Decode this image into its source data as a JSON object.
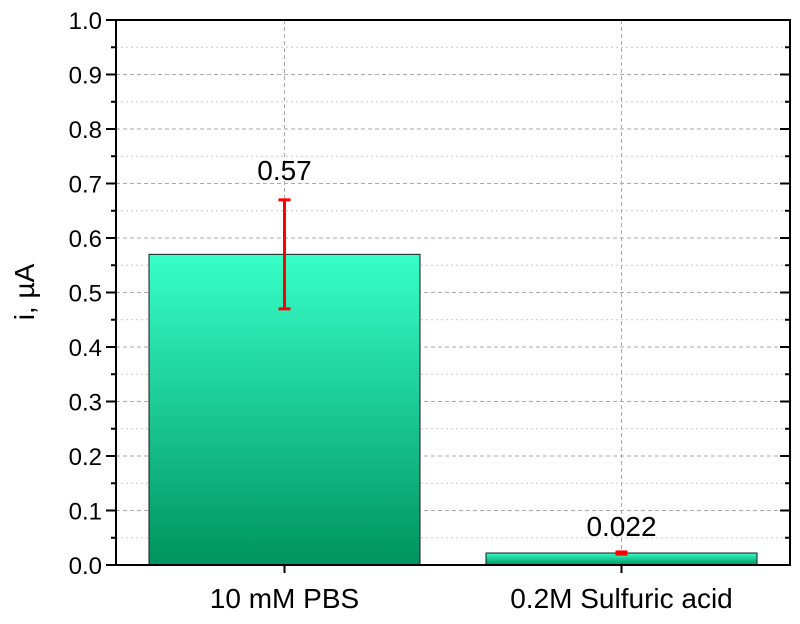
{
  "chart_data": {
    "type": "bar",
    "title": "",
    "xlabel": "",
    "ylabel": "i, µA",
    "ylim": [
      0,
      1.0
    ],
    "yticks": [
      "0.0",
      "0.1",
      "0.2",
      "0.3",
      "0.4",
      "0.5",
      "0.6",
      "0.7",
      "0.8",
      "0.9",
      "1.0"
    ],
    "categories": [
      "10 mM PBS",
      "0.2M Sulfuric acid"
    ],
    "values": [
      0.57,
      0.022
    ],
    "errors": [
      0.1,
      0.002
    ],
    "data_labels": [
      "0.57",
      "0.022"
    ],
    "grid": true,
    "colors": {
      "bar_top": "#38ffc8",
      "bar_bottom": "#00935f",
      "error": "#ff0000",
      "bar_edge": "#1a1a1a"
    }
  }
}
